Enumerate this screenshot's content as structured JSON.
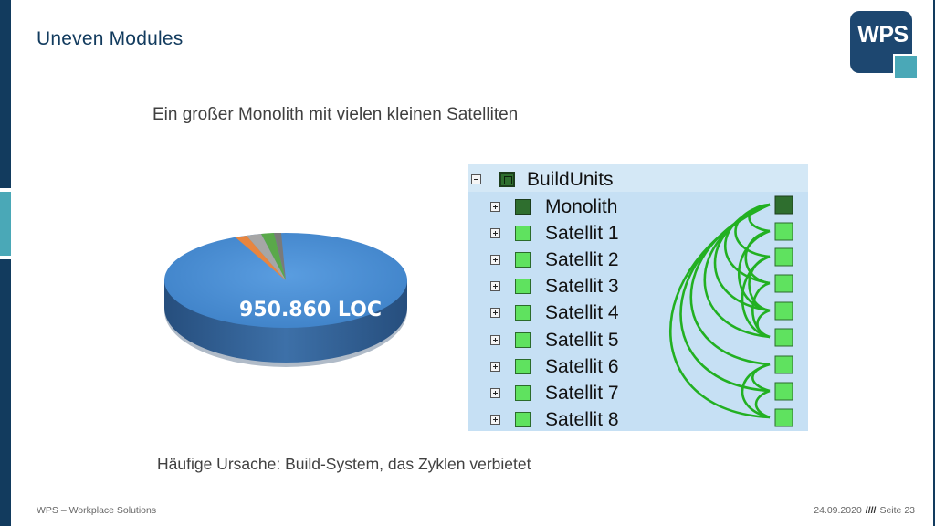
{
  "slide": {
    "title": "Uneven Modules",
    "subtitle": "Ein großer Monolith mit vielen kleinen Satelliten",
    "note": "Häufige Ursache: Build-System, das Zyklen verbietet",
    "logo_text": "WPS"
  },
  "pie_chart": {
    "label": "950.860 LOC",
    "colors": {
      "main": "#4a8fd6",
      "orange": "#e8853f",
      "gray": "#a6a6a6",
      "green": "#5aa84a"
    }
  },
  "tree": {
    "root": "BuildUnits",
    "items": [
      {
        "label": "Monolith",
        "kind": "dark"
      },
      {
        "label": "Satellit 1",
        "kind": "light"
      },
      {
        "label": "Satellit 2",
        "kind": "light"
      },
      {
        "label": "Satellit 3",
        "kind": "light"
      },
      {
        "label": "Satellit 4",
        "kind": "light"
      },
      {
        "label": "Satellit 5",
        "kind": "light"
      },
      {
        "label": "Satellit 6",
        "kind": "light"
      },
      {
        "label": "Satellit 7",
        "kind": "light"
      },
      {
        "label": "Satellit 8",
        "kind": "light"
      }
    ],
    "colors": {
      "edge": "#22b022",
      "node_light": "#5fe25f",
      "node_dark": "#2e6e2e"
    }
  },
  "footer": {
    "left": "WPS – Workplace Solutions",
    "date": "24.09.2020",
    "separator": "////",
    "page": "Seite 23"
  }
}
